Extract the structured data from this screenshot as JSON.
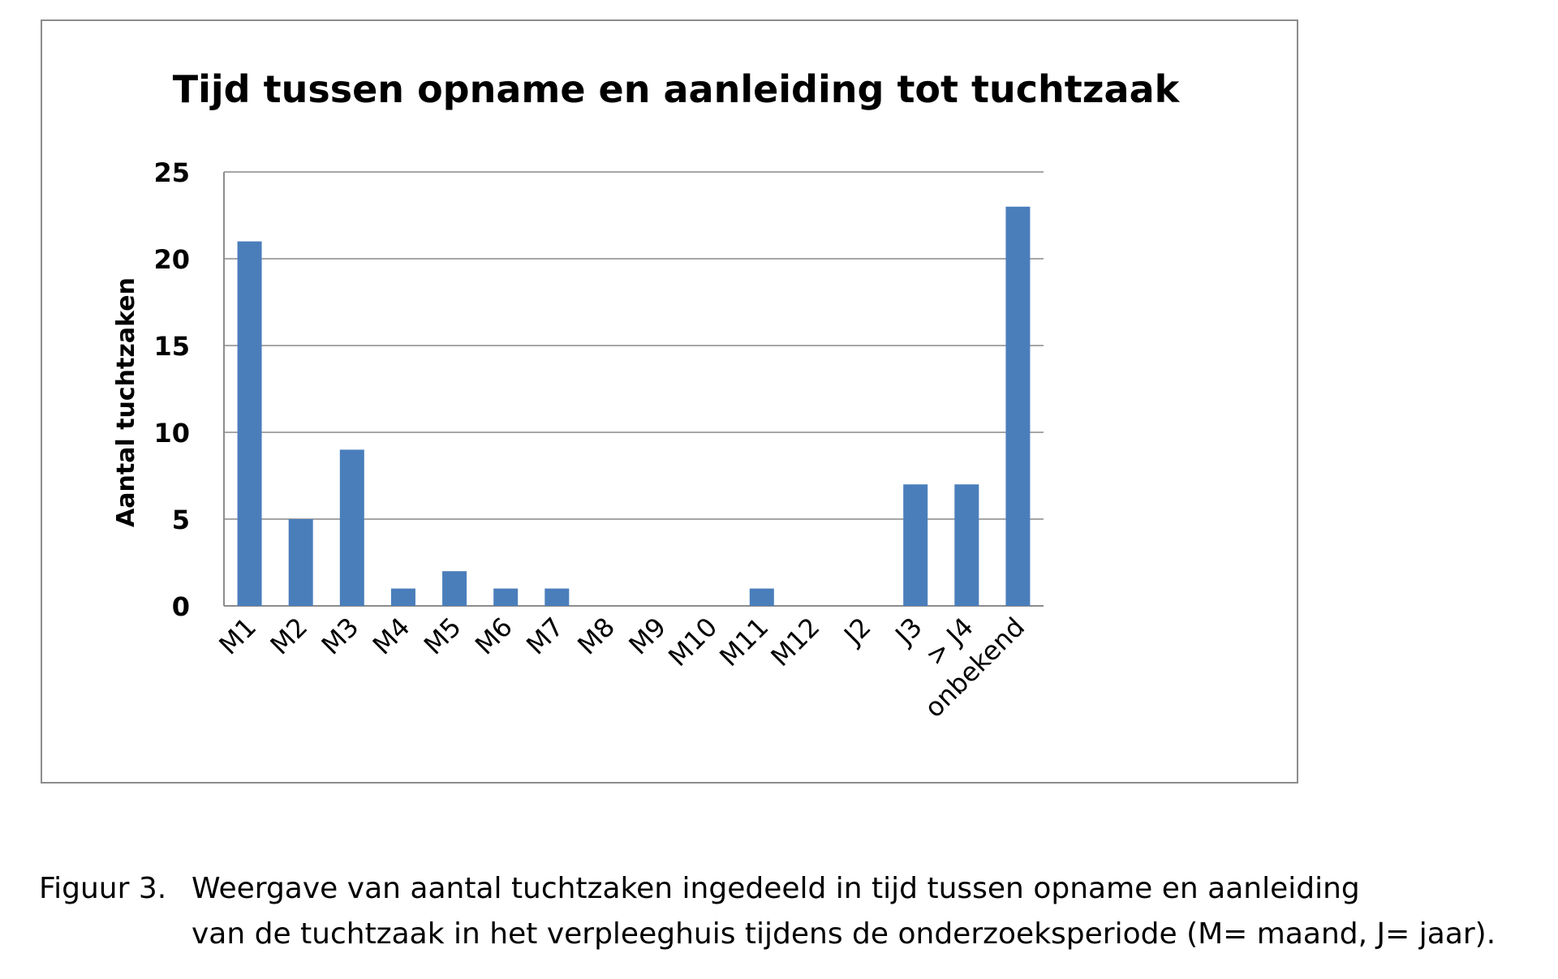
{
  "chart_data": {
    "type": "bar",
    "title": "Tijd tussen opname en aanleiding tot tuchtzaak",
    "ylabel": "Aantal tuchtzaken",
    "xlabel": "",
    "categories": [
      "M1",
      "M2",
      "M3",
      "M4",
      "M5",
      "M6",
      "M7",
      "M8",
      "M9",
      "M10",
      "M11",
      "M12",
      "J2",
      "J3",
      "> J4",
      "onbekend"
    ],
    "values": [
      21,
      5,
      9,
      1,
      2,
      1,
      1,
      0,
      0,
      0,
      1,
      0,
      0,
      7,
      7,
      23
    ],
    "ylim": [
      0,
      25
    ],
    "yticks": [
      "0",
      "5",
      "10",
      "15",
      "20",
      "25"
    ],
    "grid": true,
    "bar_color": "#4a7ebb"
  },
  "caption": {
    "number": "Figuur 3.",
    "line1": "Weergave van aantal tuchtzaken ingedeeld in tijd tussen opname en aanleiding",
    "line2": "van de tuchtzaak in het verpleeghuis tijdens de onderzoeksperiode (M= maand, J= jaar)."
  }
}
